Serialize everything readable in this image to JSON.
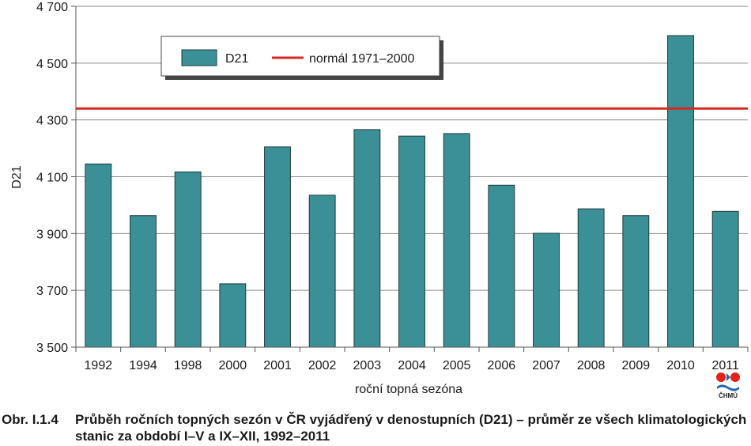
{
  "chart_data": {
    "type": "bar",
    "categories": [
      "1992",
      "1994",
      "1998",
      "2000",
      "2001",
      "2002",
      "2003",
      "2004",
      "2005",
      "2006",
      "2007",
      "2008",
      "2009",
      "2010",
      "2011"
    ],
    "series": [
      {
        "name": "D21",
        "values": [
          4145,
          3963,
          4117,
          3723,
          4205,
          4035,
          4266,
          4243,
          4252,
          4070,
          3901,
          3987,
          3963,
          4597,
          3978
        ],
        "color": "#3a9096"
      }
    ],
    "reference_line": {
      "name": "normál 1971–2000",
      "value": 4340,
      "color": "#d42a20"
    },
    "xlabel": "roční topná sezóna",
    "ylabel": "D21",
    "ylim": [
      3500,
      4700
    ],
    "yticks": [
      3500,
      3700,
      3900,
      4100,
      4300,
      4500,
      4700
    ],
    "ytick_labels": [
      "3 500",
      "3 700",
      "3 900",
      "4 100",
      "4 300",
      "4 500",
      "4 700"
    ],
    "legend": {
      "placement": "top-left",
      "entries": [
        "D21",
        "normál 1971–2000"
      ]
    },
    "grid": "horizontal"
  },
  "caption": {
    "prefix": "Obr. I.1.4",
    "text": "Průběh ročních topných sezón v ČR vyjádřený v denostupních (D21) – průměr ze všech klimatologických stanic za období I–V a IX–XII, 1992–2011"
  },
  "logo": {
    "label": "ČHMÚ",
    "color_red": "#e2231a",
    "color_blue": "#1a66b0"
  }
}
